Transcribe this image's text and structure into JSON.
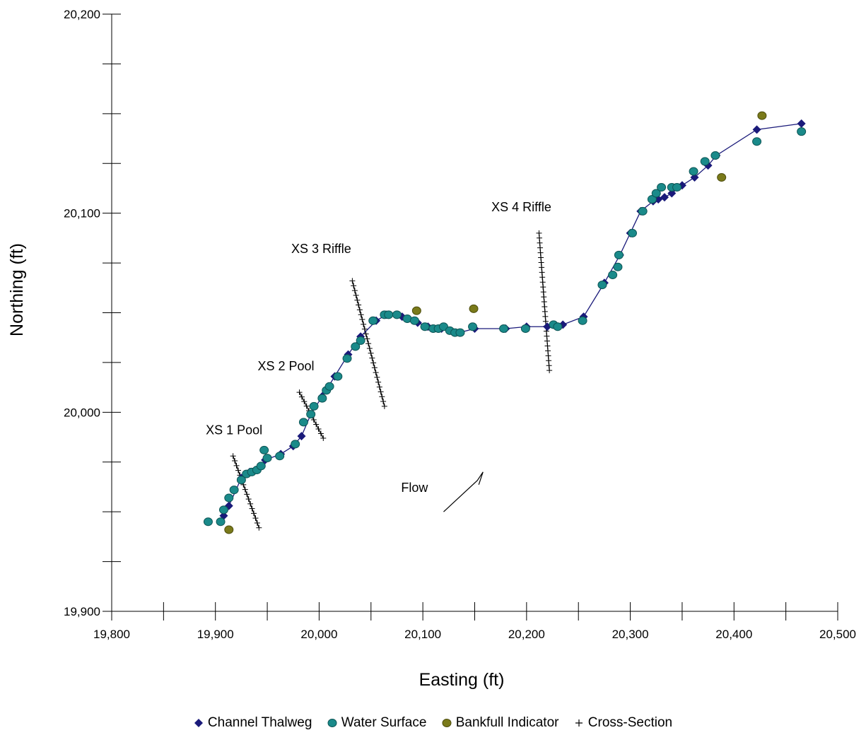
{
  "chart_data": {
    "type": "scatter",
    "xlabel": "Easting (ft)",
    "ylabel": "Northing (ft)",
    "xlim": [
      19800,
      20500
    ],
    "ylim": [
      19900,
      20200
    ],
    "x_ticks": [
      "19,800",
      "19,900",
      "20,000",
      "20,100",
      "20,200",
      "20,300",
      "20,400",
      "20,500"
    ],
    "y_ticks": [
      "19,900",
      "20,000",
      "20,100",
      "20,200"
    ],
    "legend_position": "bottom",
    "series": [
      {
        "name": "Channel Thalweg",
        "marker": "diamond",
        "color": "#1a1a7a",
        "line": true,
        "points": [
          [
            19908,
            19948
          ],
          [
            19913,
            19953
          ],
          [
            19925,
            19967
          ],
          [
            19933,
            19970
          ],
          [
            19940,
            19971
          ],
          [
            19948,
            19976
          ],
          [
            19963,
            19979
          ],
          [
            19975,
            19983
          ],
          [
            19983,
            19988
          ],
          [
            19992,
            19999
          ],
          [
            20003,
            20008
          ],
          [
            20015,
            20018
          ],
          [
            20028,
            20029
          ],
          [
            20040,
            20038
          ],
          [
            20055,
            20046
          ],
          [
            20065,
            20049
          ],
          [
            20080,
            20048
          ],
          [
            20095,
            20045
          ],
          [
            20105,
            20043
          ],
          [
            20118,
            20042
          ],
          [
            20135,
            20040
          ],
          [
            20150,
            20042
          ],
          [
            20180,
            20042
          ],
          [
            20200,
            20043
          ],
          [
            20220,
            20043
          ],
          [
            20235,
            20044
          ],
          [
            20255,
            20048
          ],
          [
            20275,
            20065
          ],
          [
            20290,
            20079
          ],
          [
            20300,
            20090
          ],
          [
            20310,
            20101
          ],
          [
            20322,
            20106
          ],
          [
            20327,
            20107
          ],
          [
            20333,
            20108
          ],
          [
            20340,
            20110
          ],
          [
            20350,
            20114
          ],
          [
            20362,
            20118
          ],
          [
            20375,
            20124
          ],
          [
            20383,
            20129
          ],
          [
            20422,
            20142
          ],
          [
            20465,
            20145
          ]
        ]
      },
      {
        "name": "Water Surface",
        "marker": "circle",
        "color": "#1a8a8a",
        "points": [
          [
            19893,
            19945
          ],
          [
            19905,
            19945
          ],
          [
            19908,
            19951
          ],
          [
            19913,
            19957
          ],
          [
            19918,
            19961
          ],
          [
            19925,
            19966
          ],
          [
            19930,
            19969
          ],
          [
            19935,
            19970
          ],
          [
            19940,
            19971
          ],
          [
            19944,
            19973
          ],
          [
            19947,
            19981
          ],
          [
            19950,
            19977
          ],
          [
            19962,
            19978
          ],
          [
            19977,
            19984
          ],
          [
            19985,
            19995
          ],
          [
            19992,
            19999
          ],
          [
            19995,
            20003
          ],
          [
            20003,
            20007
          ],
          [
            20007,
            20011
          ],
          [
            20010,
            20013
          ],
          [
            20018,
            20018
          ],
          [
            20027,
            20027
          ],
          [
            20035,
            20033
          ],
          [
            20040,
            20036
          ],
          [
            20052,
            20046
          ],
          [
            20063,
            20049
          ],
          [
            20067,
            20049
          ],
          [
            20075,
            20049
          ],
          [
            20085,
            20047
          ],
          [
            20092,
            20046
          ],
          [
            20102,
            20043
          ],
          [
            20110,
            20042
          ],
          [
            20115,
            20042
          ],
          [
            20120,
            20043
          ],
          [
            20126,
            20041
          ],
          [
            20131,
            20040
          ],
          [
            20136,
            20040
          ],
          [
            20148,
            20043
          ],
          [
            20178,
            20042
          ],
          [
            20199,
            20042
          ],
          [
            20226,
            20044
          ],
          [
            20230,
            20043
          ],
          [
            20254,
            20046
          ],
          [
            20273,
            20064
          ],
          [
            20283,
            20069
          ],
          [
            20288,
            20073
          ],
          [
            20289,
            20079
          ],
          [
            20302,
            20090
          ],
          [
            20312,
            20101
          ],
          [
            20321,
            20107
          ],
          [
            20325,
            20110
          ],
          [
            20330,
            20113
          ],
          [
            20340,
            20113
          ],
          [
            20345,
            20113
          ],
          [
            20361,
            20121
          ],
          [
            20372,
            20126
          ],
          [
            20382,
            20129
          ],
          [
            20422,
            20136
          ],
          [
            20465,
            20141
          ]
        ]
      },
      {
        "name": "Bankfull Indicator",
        "marker": "circle",
        "color": "#7a7a1a",
        "points": [
          [
            19913,
            19941
          ],
          [
            20094,
            20051
          ],
          [
            20149,
            20052
          ],
          [
            20388,
            20118
          ],
          [
            20427,
            20149
          ]
        ]
      },
      {
        "name": "Cross-Section",
        "marker": "plus",
        "color": "#000000",
        "cross_sections": [
          {
            "label": "XS 1 Pool",
            "from": [
              19917,
              19978
            ],
            "to": [
              19942,
              19942
            ]
          },
          {
            "label": "XS 2 Pool",
            "from": [
              19981,
              20010
            ],
            "to": [
              20004,
              19987
            ]
          },
          {
            "label": "XS 3 Riffle",
            "from": [
              20032,
              20066
            ],
            "to": [
              20063,
              20003
            ]
          },
          {
            "label": "XS 4 Riffle",
            "from": [
              20212,
              20090
            ],
            "to": [
              20222,
              20021
            ]
          }
        ]
      }
    ],
    "annotations": [
      {
        "text": "XS 1 Pool",
        "x": 19918,
        "y": 19989
      },
      {
        "text": "XS 2 Pool",
        "x": 19968,
        "y": 20021
      },
      {
        "text": "XS 3 Riffle",
        "x": 20002,
        "y": 20080
      },
      {
        "text": "XS 4 Riffle",
        "x": 20195,
        "y": 20101
      },
      {
        "text": "Flow",
        "x": 20092,
        "y": 19960
      }
    ],
    "flow_arrow": {
      "from": [
        20120,
        19950
      ],
      "to": [
        20158,
        19970
      ]
    }
  }
}
